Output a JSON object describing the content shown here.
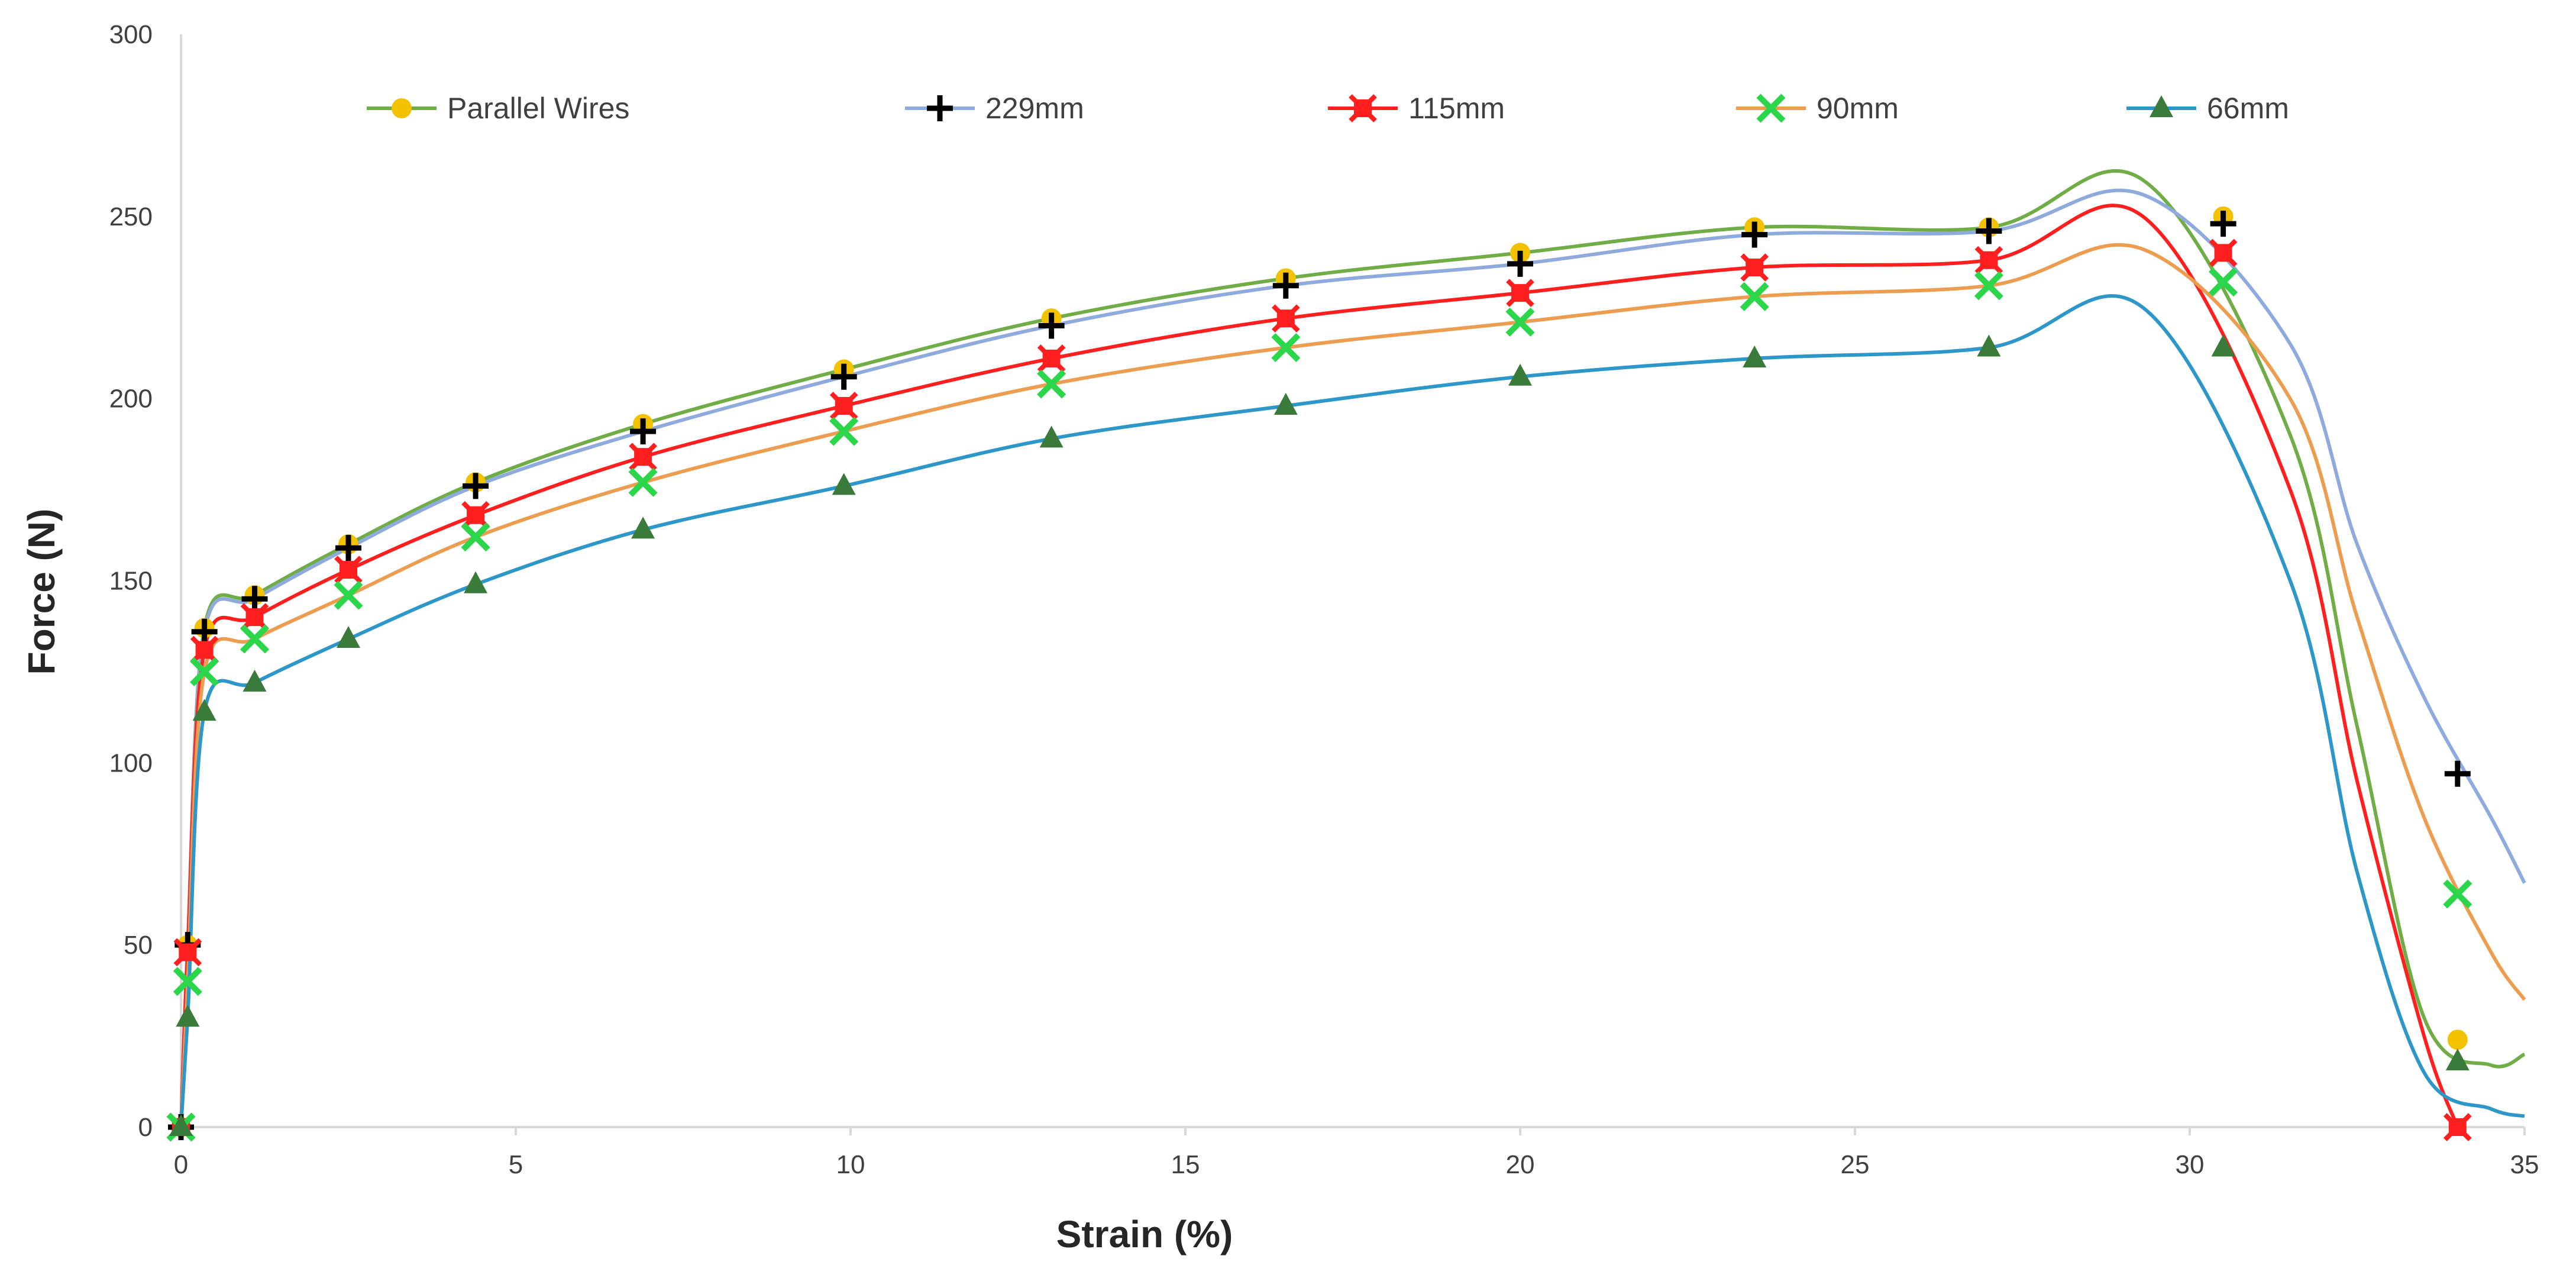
{
  "chart_data": {
    "type": "line",
    "title": "",
    "xlabel": "Strain (%)",
    "ylabel": "Force (N)",
    "xlim": [
      0,
      35
    ],
    "ylim": [
      0,
      300
    ],
    "xticks": [
      0,
      5,
      10,
      15,
      20,
      25,
      30,
      35
    ],
    "yticks": [
      0,
      50,
      100,
      150,
      200,
      250,
      300
    ],
    "grid": false,
    "legend_position": "top",
    "series": [
      {
        "name": "Parallel Wires",
        "color": "#f2c200",
        "line_color": "#70ad47",
        "marker": "circle",
        "x": [
          0,
          0.1,
          0.35,
          1.1,
          2.5,
          4.4,
          6.9,
          9.9,
          13,
          16.5,
          20,
          23.5,
          27,
          30.5,
          34
        ],
        "y": [
          0,
          50,
          137,
          146,
          160,
          177,
          193,
          208,
          222,
          233,
          240,
          247,
          247,
          250,
          24
        ],
        "curve_x": [
          29.3,
          31.5,
          32.5,
          33.5,
          34.5,
          35
        ],
        "curve_y": [
          260,
          190,
          110,
          30,
          17,
          20
        ]
      },
      {
        "name": "229mm",
        "color": "#000000",
        "line_color": "#8faadc",
        "marker": "plus",
        "x": [
          0,
          0.1,
          0.35,
          1.1,
          2.5,
          4.4,
          6.9,
          9.9,
          13,
          16.5,
          20,
          23.5,
          27,
          30.5,
          34
        ],
        "y": [
          0,
          50,
          136,
          145,
          159,
          176,
          191,
          206,
          220,
          231,
          237,
          245,
          246,
          248,
          97
        ],
        "curve_x": [
          29.3,
          31.5,
          32.5,
          33.5,
          34.5,
          35
        ],
        "curve_y": [
          256,
          215,
          160,
          118,
          85,
          67
        ]
      },
      {
        "name": "115mm",
        "color": "#ff1f1f",
        "line_color": "#ff1f1f",
        "marker": "square-x",
        "x": [
          0,
          0.1,
          0.35,
          1.1,
          2.5,
          4.4,
          6.9,
          9.9,
          13,
          16.5,
          20,
          23.5,
          27,
          30.5,
          34
        ],
        "y": [
          0,
          48,
          131,
          140,
          153,
          168,
          184,
          198,
          211,
          222,
          229,
          236,
          238,
          240,
          0
        ],
        "curve_x": [
          29.3,
          31.5,
          32.5,
          33.5,
          34
        ],
        "curve_y": [
          250,
          175,
          95,
          25,
          0
        ]
      },
      {
        "name": "90mm",
        "color": "#2bd64a",
        "line_color": "#ed9d50",
        "marker": "x",
        "x": [
          0,
          0.1,
          0.35,
          1.1,
          2.5,
          4.4,
          6.9,
          9.9,
          13,
          16.5,
          20,
          23.5,
          27,
          30.5,
          34
        ],
        "y": [
          0,
          40,
          125,
          134,
          146,
          162,
          177,
          191,
          204,
          214,
          221,
          228,
          231,
          232,
          64
        ],
        "curve_x": [
          29.3,
          31.5,
          32.5,
          33.5,
          34.5,
          35
        ],
        "curve_y": [
          241,
          200,
          140,
          85,
          48,
          35
        ]
      },
      {
        "name": "66mm",
        "color": "#3a7a3a",
        "line_color": "#2e97c9",
        "marker": "triangle",
        "x": [
          0,
          0.1,
          0.35,
          1.1,
          2.5,
          4.4,
          6.9,
          9.9,
          13,
          16.5,
          20,
          23.5,
          27,
          30.5,
          34
        ],
        "y": [
          0,
          30,
          114,
          122,
          134,
          149,
          164,
          176,
          189,
          198,
          206,
          211,
          214,
          214,
          18
        ],
        "curve_x": [
          29.3,
          31.5,
          32.5,
          33.5,
          34.5,
          35
        ],
        "curve_y": [
          225,
          150,
          70,
          15,
          5,
          3
        ]
      }
    ]
  }
}
